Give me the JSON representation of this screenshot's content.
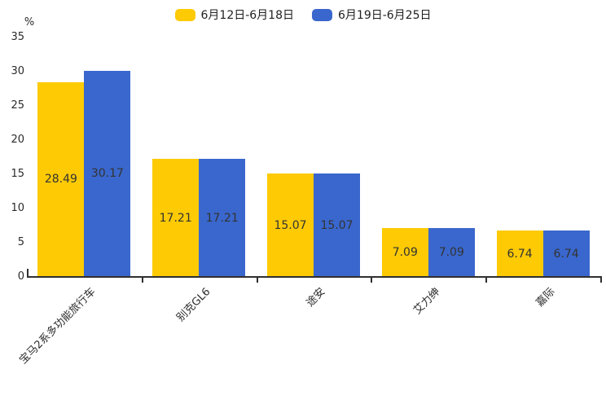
{
  "legend": {
    "items": [
      {
        "label": "6月12日-6月18日",
        "color": "#FDCA04"
      },
      {
        "label": "6月19日-6月25日",
        "color": "#3A67CD"
      }
    ]
  },
  "chart_data": {
    "type": "bar",
    "title": "",
    "unit": "%",
    "categories": [
      "宝马2系多功能旅行车",
      "别克GL6",
      "途安",
      "艾力绅",
      "嘉际"
    ],
    "series": [
      {
        "name": "6月12日-6月18日",
        "color": "#FDCA04",
        "values": [
          28.49,
          17.21,
          15.07,
          7.09,
          6.74
        ]
      },
      {
        "name": "6月19日-6月25日",
        "color": "#3A67CD",
        "values": [
          30.17,
          17.21,
          15.07,
          7.09,
          6.74
        ]
      }
    ],
    "value_labels": [
      "28.49",
      "17.21",
      "15.07",
      "7.09",
      "6.74",
      "30.17",
      "17.21",
      "15.07",
      "7.09",
      "6.74"
    ],
    "ylim": [
      0,
      35
    ],
    "yticks": [
      0,
      5,
      10,
      15,
      20,
      25,
      30,
      35
    ],
    "grid": false,
    "legend_position": "top",
    "value_label_position": "inside-center",
    "x_label_rotation": 45
  }
}
